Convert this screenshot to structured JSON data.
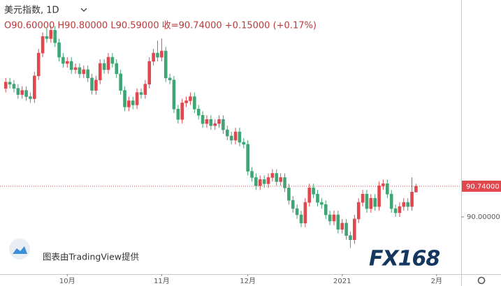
{
  "header": {
    "title": "美元指数, 1D",
    "ohlc_text": "O90.60000 H90.80000 L90.59000 收=90.74000 +0.15000 (+0.17%)"
  },
  "watermark": "图表由TradingView提供",
  "logo": "FX168",
  "chart_data": {
    "type": "candlestick",
    "up_color": "#e0484e",
    "down_color": "#3fa574",
    "xlim": [
      -1.4,
      111
    ],
    "xticks": [
      {
        "value": 15,
        "label": "10月"
      },
      {
        "value": 38,
        "label": "11月"
      },
      {
        "value": 59,
        "label": "12月"
      },
      {
        "value": 82,
        "label": "2021"
      },
      {
        "value": 105,
        "label": "2月"
      }
    ],
    "ylim": [
      88.62,
      95.23
    ],
    "yticks": [
      {
        "value": 90,
        "label": "90.00000"
      }
    ],
    "last_price": {
      "value": 90.74,
      "label": "90.74000"
    },
    "open": [
      93.1,
      93.25,
      93.2,
      93.1,
      92.95,
      93.05,
      92.9,
      92.85,
      93.4,
      93.95,
      94.35,
      94.3,
      94.5,
      94.2,
      93.85,
      93.7,
      93.75,
      93.55,
      93.6,
      93.45,
      93.55,
      93.35,
      93.05,
      93.3,
      93.7,
      93.55,
      93.85,
      93.7,
      93.45,
      93.05,
      92.65,
      92.8,
      92.7,
      93.0,
      92.95,
      93.2,
      93.75,
      93.95,
      93.85,
      94.0,
      93.35,
      93.3,
      92.6,
      92.35,
      92.75,
      92.8,
      92.9,
      92.6,
      92.45,
      92.25,
      92.35,
      92.2,
      92.25,
      92.35,
      92.1,
      91.95,
      91.85,
      92.05,
      91.8,
      91.75,
      91.1,
      90.95,
      90.75,
      90.9,
      90.8,
      90.95,
      91.05,
      90.85,
      90.95,
      90.7,
      90.4,
      90.2,
      90.05,
      89.85,
      90.35,
      90.7,
      90.55,
      90.35,
      90.3,
      90.05,
      89.9,
      90.05,
      89.7,
      89.85,
      89.55,
      89.45,
      89.95,
      90.35,
      90.55,
      90.2,
      90.45,
      90.25,
      90.75,
      90.8,
      90.55,
      90.2,
      90.1,
      90.25,
      90.35,
      90.25,
      90.6
    ],
    "high": [
      93.35,
      93.35,
      93.3,
      93.2,
      93.15,
      93.15,
      93.0,
      93.5,
      94.05,
      94.45,
      94.55,
      94.6,
      94.6,
      94.3,
      93.95,
      93.85,
      93.85,
      93.7,
      93.7,
      93.65,
      93.65,
      93.45,
      93.4,
      93.8,
      93.8,
      93.95,
      93.95,
      93.8,
      93.55,
      93.15,
      92.9,
      92.9,
      93.1,
      93.1,
      93.3,
      93.85,
      94.05,
      94.25,
      94.3,
      94.1,
      93.45,
      93.4,
      92.7,
      92.85,
      92.9,
      93.0,
      93.0,
      92.7,
      92.55,
      92.45,
      92.45,
      92.35,
      92.45,
      92.45,
      92.2,
      92.05,
      92.15,
      92.15,
      91.9,
      91.85,
      91.2,
      91.05,
      91.0,
      91.0,
      91.05,
      91.15,
      91.15,
      91.05,
      91.05,
      90.8,
      90.5,
      90.3,
      90.15,
      90.45,
      90.8,
      90.8,
      90.65,
      90.45,
      90.4,
      90.15,
      90.15,
      90.15,
      89.95,
      89.95,
      89.65,
      90.05,
      90.45,
      90.65,
      90.65,
      90.55,
      90.55,
      90.85,
      90.9,
      90.9,
      90.65,
      90.3,
      90.35,
      90.45,
      90.45,
      90.95,
      90.8
    ],
    "low": [
      93.0,
      93.1,
      93.0,
      92.85,
      92.85,
      92.8,
      92.75,
      92.75,
      93.3,
      93.85,
      94.2,
      94.2,
      94.1,
      93.75,
      93.6,
      93.6,
      93.45,
      93.45,
      93.35,
      93.35,
      93.25,
      92.95,
      92.95,
      93.2,
      93.45,
      93.45,
      93.6,
      93.35,
      92.95,
      92.55,
      92.55,
      92.6,
      92.6,
      92.85,
      92.85,
      93.1,
      93.65,
      93.75,
      93.75,
      93.25,
      93.2,
      92.5,
      92.25,
      92.25,
      92.65,
      92.7,
      92.5,
      92.35,
      92.15,
      92.15,
      92.1,
      92.1,
      92.15,
      92.0,
      91.85,
      91.75,
      91.75,
      91.7,
      91.65,
      91.0,
      90.85,
      90.65,
      90.65,
      90.7,
      90.7,
      90.85,
      90.75,
      90.75,
      90.6,
      90.3,
      90.1,
      89.95,
      89.75,
      89.75,
      90.25,
      90.45,
      90.25,
      90.2,
      89.95,
      89.8,
      89.8,
      89.6,
      89.6,
      89.45,
      89.25,
      89.35,
      89.85,
      90.25,
      90.1,
      90.1,
      90.15,
      90.15,
      90.65,
      90.45,
      90.1,
      90.0,
      90.0,
      90.15,
      90.15,
      90.15,
      90.59
    ],
    "close": [
      93.25,
      93.2,
      93.1,
      92.95,
      93.05,
      92.9,
      92.85,
      93.4,
      93.95,
      94.35,
      94.3,
      94.5,
      94.2,
      93.85,
      93.7,
      93.75,
      93.55,
      93.6,
      93.45,
      93.55,
      93.35,
      93.05,
      93.3,
      93.7,
      93.55,
      93.85,
      93.7,
      93.45,
      93.05,
      92.65,
      92.8,
      92.7,
      93.0,
      92.95,
      93.2,
      93.75,
      93.95,
      93.85,
      94.0,
      93.35,
      93.3,
      92.6,
      92.35,
      92.75,
      92.8,
      92.9,
      92.6,
      92.45,
      92.25,
      92.35,
      92.2,
      92.25,
      92.35,
      92.1,
      91.95,
      91.85,
      92.05,
      91.8,
      91.75,
      91.1,
      90.95,
      90.75,
      90.9,
      90.8,
      90.95,
      91.05,
      90.85,
      90.95,
      90.7,
      90.4,
      90.2,
      90.05,
      89.85,
      90.35,
      90.7,
      90.55,
      90.35,
      90.3,
      90.05,
      89.9,
      90.05,
      89.7,
      89.85,
      89.55,
      89.45,
      89.95,
      90.35,
      90.55,
      90.2,
      90.45,
      90.25,
      90.75,
      90.8,
      90.55,
      90.2,
      90.1,
      90.25,
      90.35,
      90.25,
      90.6,
      90.74
    ]
  }
}
